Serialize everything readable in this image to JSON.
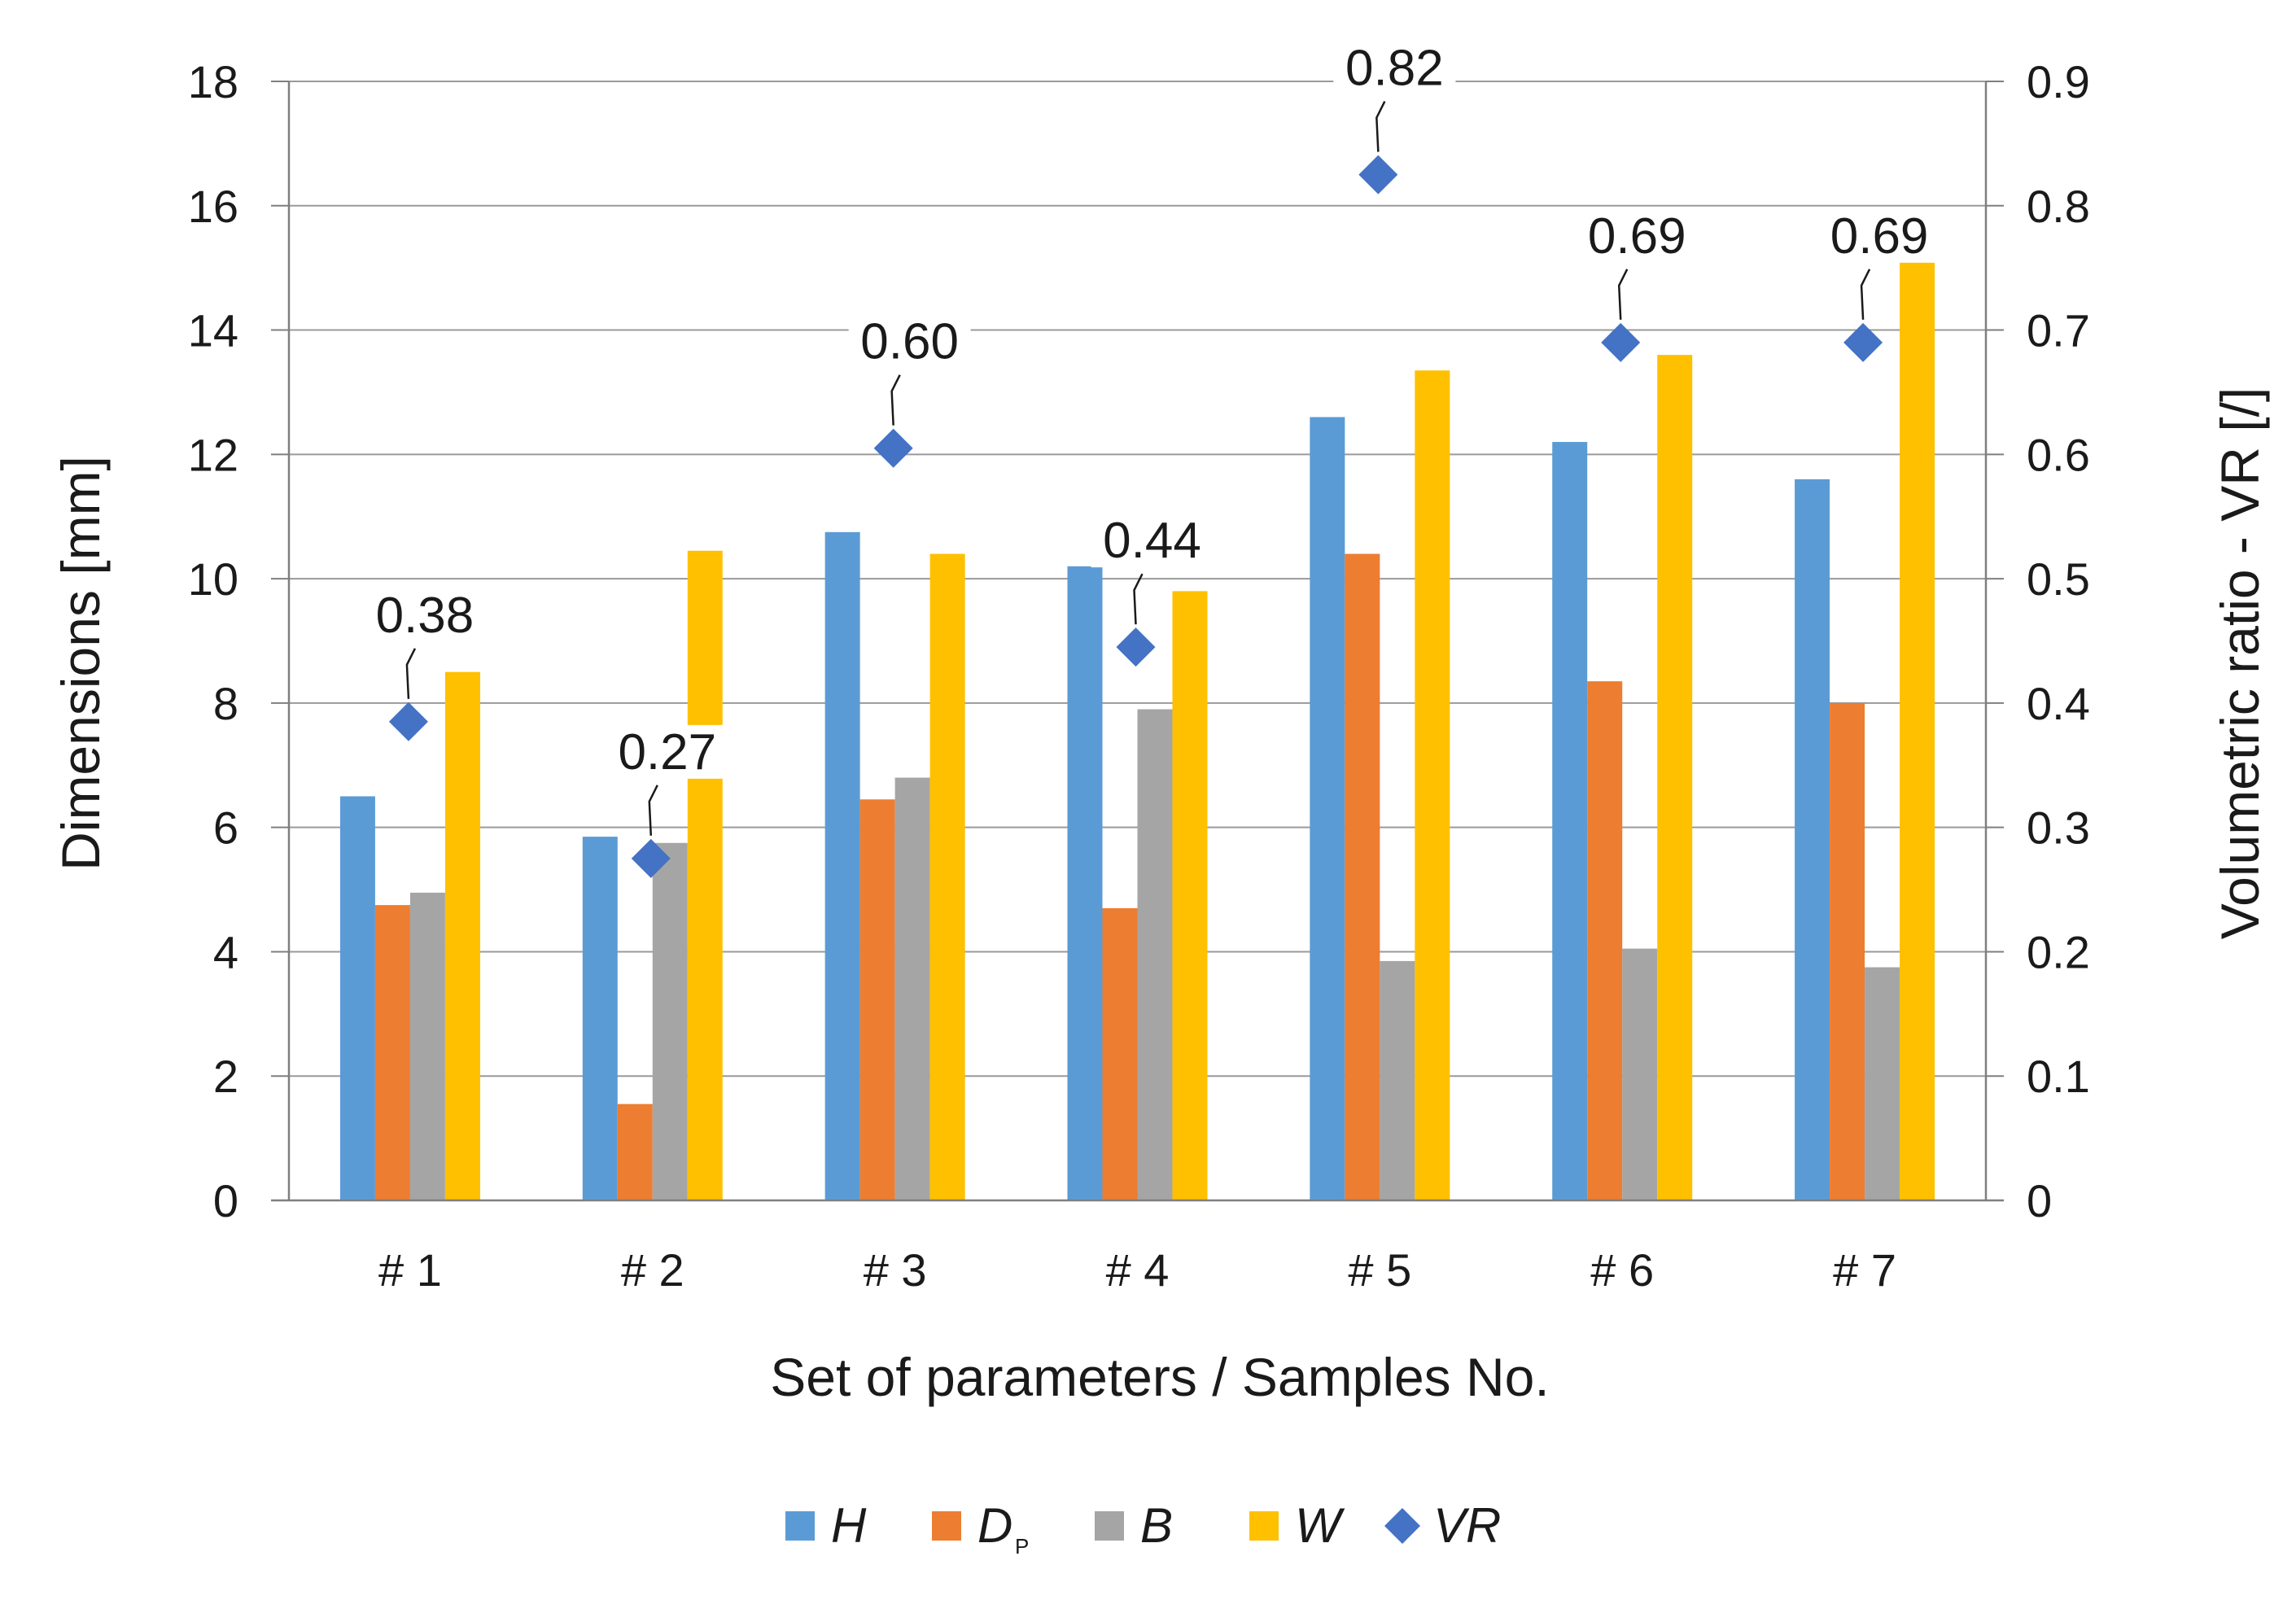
{
  "chart_data": {
    "type": "bar",
    "title": "",
    "categories": [
      "# 1",
      "# 2",
      "# 3",
      "# 4",
      "# 5",
      "# 6",
      "# 7"
    ],
    "xlabel": "Set of parameters / Samples No.",
    "ylabel": "Dimensions [mm]",
    "ylim": [
      0,
      18
    ],
    "yticks": [
      "0",
      "2",
      "4",
      "6",
      "8",
      "10",
      "12",
      "14",
      "16",
      "18"
    ],
    "y2label": "Volumetric ratio - VR [/]",
    "y2lim": [
      0,
      0.9
    ],
    "y2ticks": [
      "0",
      "0.1",
      "0.2",
      "0.3",
      "0.4",
      "0.5",
      "0.6",
      "0.7",
      "0.8",
      "0.9"
    ],
    "grid": true,
    "legend_position": "bottom",
    "series": [
      {
        "name": "H",
        "color": "#5B9BD5",
        "values": [
          6.5,
          5.85,
          10.75,
          10.2,
          12.6,
          12.2,
          11.6
        ]
      },
      {
        "name": "D",
        "name_sub": "P",
        "color": "#ED7D31",
        "values": [
          4.75,
          1.55,
          6.45,
          4.7,
          10.4,
          8.35,
          8.0
        ]
      },
      {
        "name": "B",
        "color": "#A5A5A5",
        "values": [
          4.95,
          5.75,
          6.8,
          7.9,
          3.85,
          4.05,
          3.75
        ]
      },
      {
        "name": "W",
        "color": "#FFC000",
        "values": [
          8.5,
          10.45,
          10.4,
          9.8,
          13.35,
          13.6,
          15.15
        ]
      }
    ],
    "vr_series": {
      "name": "VR",
      "color": "#4472C4",
      "values": [
        0.385,
        0.275,
        0.605,
        0.445,
        0.825,
        0.69,
        0.69
      ],
      "labels": [
        "0.38",
        "0.27",
        "0.60",
        "0.44",
        "0.82",
        "0.69",
        "0.69"
      ]
    }
  }
}
